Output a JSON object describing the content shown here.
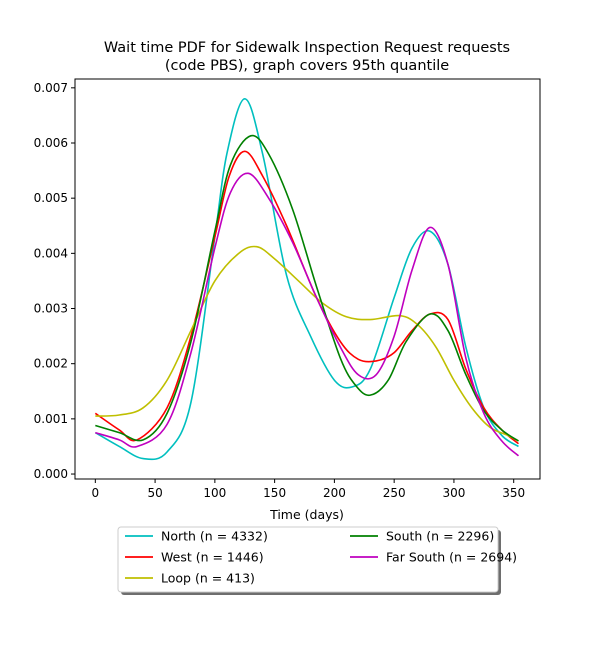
{
  "chart_data": {
    "type": "line",
    "title_lines": [
      "Wait time PDF for Sidewalk Inspection Request  requests",
      "(code PBS), graph covers 95th quantile"
    ],
    "xlabel": "Time (days)",
    "ylabel": "",
    "xlim": [
      -17,
      372
    ],
    "ylim": [
      -9e-05,
      0.00716
    ],
    "xticks": [
      0,
      50,
      100,
      150,
      200,
      250,
      300,
      350
    ],
    "yticks": [
      0.0,
      0.001,
      0.002,
      0.003,
      0.004,
      0.005,
      0.006,
      0.007
    ],
    "ytick_labels": [
      "0.000",
      "0.001",
      "0.002",
      "0.003",
      "0.004",
      "0.005",
      "0.006",
      "0.007"
    ],
    "legend_position": "bottom-center",
    "series": [
      {
        "name": "North (n = 4332)",
        "color": "#00bfbf",
        "x": [
          0,
          20,
          40,
          60,
          80,
          100,
          110,
          125,
          140,
          160,
          180,
          200,
          215,
          230,
          250,
          265,
          280,
          295,
          310,
          325,
          340,
          354
        ],
        "y": [
          0.00075,
          0.0005,
          0.00028,
          0.0004,
          0.0013,
          0.0043,
          0.0058,
          0.0068,
          0.0058,
          0.0036,
          0.0025,
          0.0017,
          0.00158,
          0.0019,
          0.0032,
          0.0041,
          0.0044,
          0.0038,
          0.0023,
          0.0012,
          0.0007,
          0.0005
        ]
      },
      {
        "name": "West (n = 1446)",
        "color": "#ff0000",
        "x": [
          0,
          20,
          35,
          60,
          80,
          100,
          112,
          125,
          140,
          160,
          185,
          205,
          220,
          235,
          250,
          265,
          280,
          295,
          310,
          325,
          340,
          354
        ],
        "y": [
          0.0011,
          0.0008,
          0.00062,
          0.0012,
          0.0025,
          0.0043,
          0.0054,
          0.00585,
          0.0054,
          0.0045,
          0.0032,
          0.0024,
          0.00208,
          0.00205,
          0.0022,
          0.0026,
          0.0029,
          0.0028,
          0.0019,
          0.0012,
          0.0008,
          0.00055
        ]
      },
      {
        "name": "Loop (n = 413)",
        "color": "#bfbf00",
        "x": [
          0,
          20,
          40,
          60,
          80,
          100,
          120,
          135,
          150,
          170,
          190,
          210,
          230,
          255,
          270,
          285,
          300,
          315,
          330,
          345,
          354
        ],
        "y": [
          0.00105,
          0.00107,
          0.0012,
          0.0017,
          0.0026,
          0.0035,
          0.004,
          0.00412,
          0.0039,
          0.0035,
          0.0031,
          0.00285,
          0.0028,
          0.00287,
          0.0027,
          0.0023,
          0.0017,
          0.0012,
          0.00085,
          0.0007,
          0.0006
        ]
      },
      {
        "name": "South (n = 2296)",
        "color": "#008000",
        "x": [
          0,
          20,
          40,
          60,
          80,
          100,
          113,
          130,
          145,
          165,
          185,
          205,
          218,
          230,
          245,
          260,
          280,
          295,
          310,
          325,
          340,
          354
        ],
        "y": [
          0.00088,
          0.00075,
          0.00062,
          0.0011,
          0.0024,
          0.0044,
          0.0056,
          0.00613,
          0.0058,
          0.0048,
          0.0034,
          0.0021,
          0.0016,
          0.00143,
          0.0017,
          0.0024,
          0.0029,
          0.0026,
          0.0018,
          0.00115,
          0.0008,
          0.0006
        ]
      },
      {
        "name": "Far South (n = 2694)",
        "color": "#bf00bf",
        "x": [
          0,
          20,
          35,
          60,
          80,
          100,
          113,
          128,
          145,
          165,
          185,
          205,
          220,
          235,
          250,
          265,
          280,
          295,
          310,
          325,
          340,
          354
        ],
        "y": [
          0.00075,
          0.00062,
          0.0005,
          0.0009,
          0.0022,
          0.0041,
          0.0051,
          0.00545,
          0.005,
          0.0042,
          0.0032,
          0.0023,
          0.0018,
          0.0018,
          0.0025,
          0.0037,
          0.00447,
          0.0038,
          0.0021,
          0.0011,
          0.0006,
          0.00033
        ]
      }
    ]
  }
}
